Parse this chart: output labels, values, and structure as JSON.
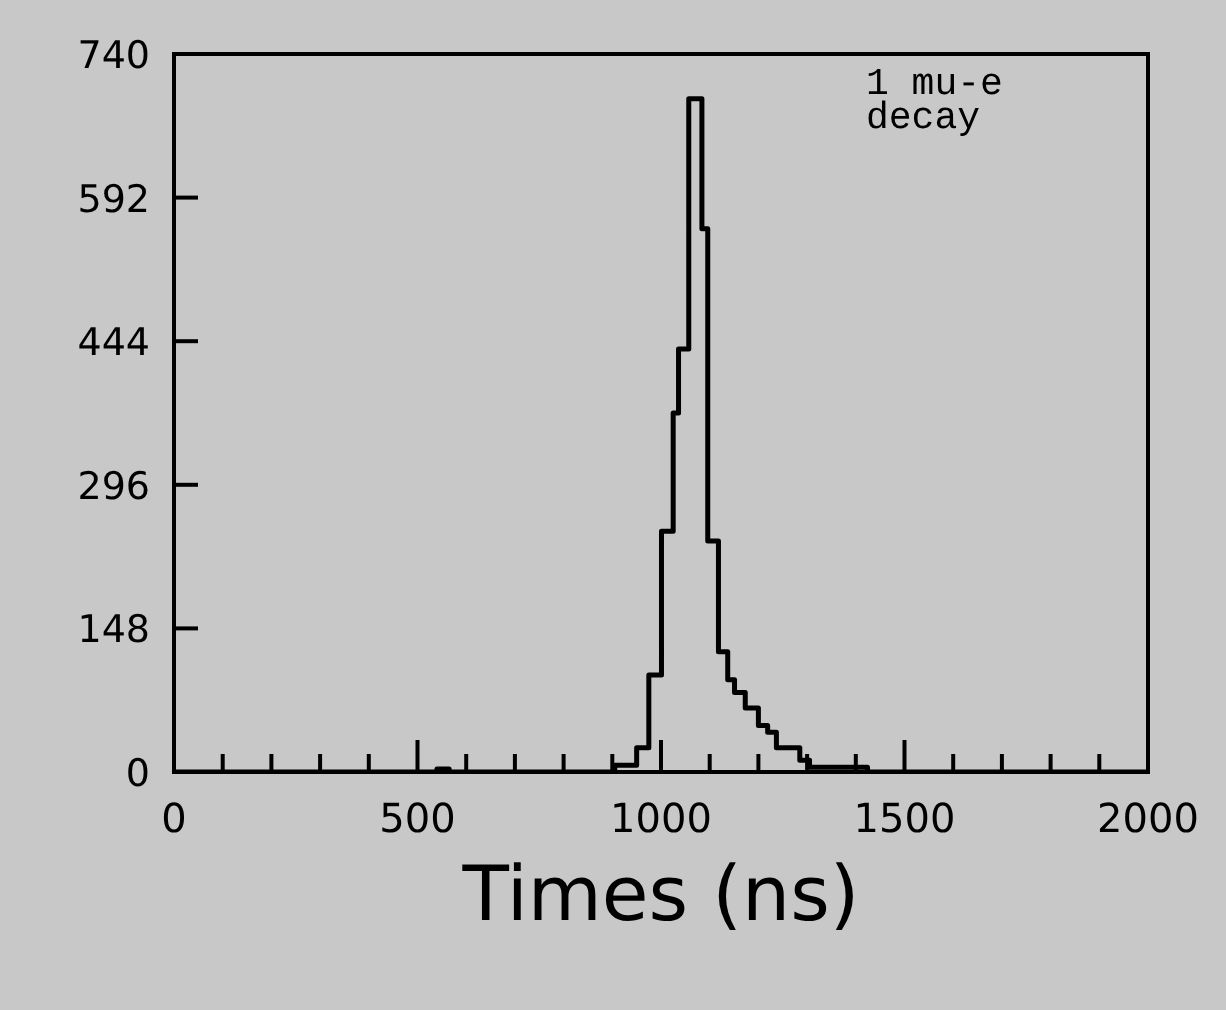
{
  "chart_data": {
    "type": "histogram",
    "xlabel": "Times (ns)",
    "bins": [
      0,
      540,
      565,
      905,
      950,
      975,
      1001,
      1025,
      1036,
      1057,
      1084,
      1096,
      1118,
      1137,
      1151,
      1173,
      1200,
      1219,
      1237,
      1285,
      1305,
      1424,
      2000
    ],
    "values": [
      0,
      3,
      0,
      7,
      25,
      100,
      248,
      370,
      436,
      694,
      560,
      238,
      124,
      95,
      82,
      66,
      48,
      41,
      25,
      12,
      5,
      0
    ],
    "color": "#000000",
    "xlim": [
      0,
      2000
    ],
    "xticks": [
      0,
      {
        "value": 100,
        "label": null
      },
      {
        "value": 200,
        "label": null
      },
      {
        "value": 300,
        "label": null
      },
      {
        "value": 400,
        "label": null
      },
      500,
      {
        "value": 600,
        "label": null
      },
      {
        "value": 700,
        "label": null
      },
      {
        "value": 800,
        "label": null
      },
      {
        "value": 900,
        "label": null
      },
      1000,
      {
        "value": 1100,
        "label": null
      },
      {
        "value": 1200,
        "label": null
      },
      {
        "value": 1300,
        "label": null
      },
      {
        "value": 1400,
        "label": null
      },
      1500,
      {
        "value": 1600,
        "label": null
      },
      {
        "value": 1700,
        "label": null
      },
      {
        "value": 1800,
        "label": null
      },
      {
        "value": 1900,
        "label": null
      },
      2000
    ],
    "ylim": [
      0,
      740
    ],
    "yticks": [
      0,
      148,
      296,
      444,
      592,
      740
    ],
    "annotations": [
      "1 mu-e decay"
    ]
  }
}
